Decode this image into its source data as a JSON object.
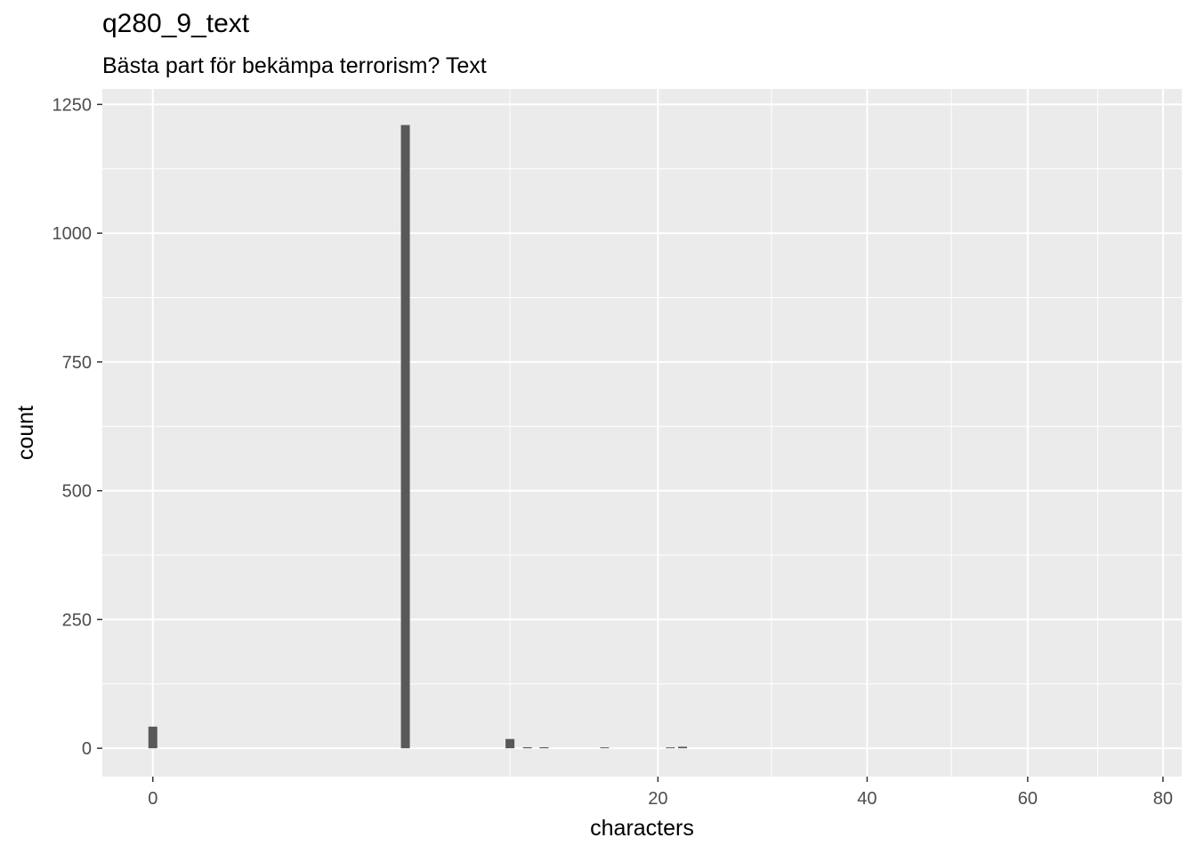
{
  "chart_data": {
    "type": "bar",
    "title": "q280_9_text",
    "subtitle": "Bästa part för bekämpa terrorism? Text",
    "xlabel": "characters",
    "ylabel": "count",
    "x_scale": "sqrt",
    "xlim": [
      -0.2,
      83
    ],
    "ylim": [
      -55,
      1280
    ],
    "x_ticks": [
      0,
      20,
      40,
      60,
      80
    ],
    "x_minor_ticks": [
      10,
      30,
      50,
      70
    ],
    "y_ticks": [
      0,
      250,
      500,
      750,
      1000,
      1250
    ],
    "y_minor_ticks": [
      125,
      375,
      625,
      875,
      1125
    ],
    "grid": true,
    "bar_color": "#595959",
    "panel_color": "#ebebeb",
    "bars": [
      {
        "x": 0,
        "count": 42
      },
      {
        "x": 5,
        "count": 1210
      },
      {
        "x": 10,
        "count": 18
      },
      {
        "x": 11,
        "count": 2
      },
      {
        "x": 12,
        "count": 2
      },
      {
        "x": 16,
        "count": 1
      },
      {
        "x": 21,
        "count": 1
      },
      {
        "x": 22,
        "count": 3
      }
    ]
  }
}
